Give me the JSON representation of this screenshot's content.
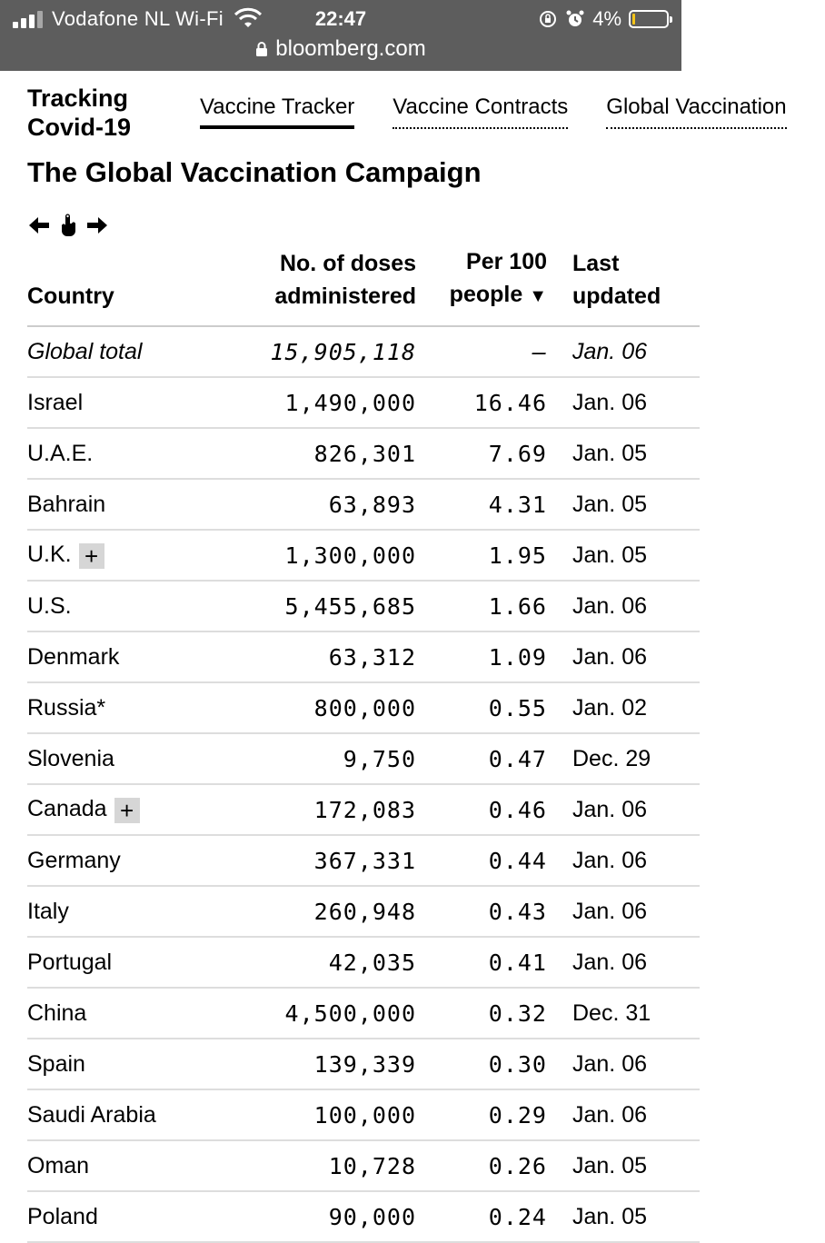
{
  "status_bar": {
    "carrier": "Vodafone NL Wi-Fi",
    "time": "22:47",
    "battery_pct": "4%"
  },
  "url_bar": {
    "domain": "bloomberg.com"
  },
  "header": {
    "brand_line1": "Tracking",
    "brand_line2": "Covid-19",
    "tabs": [
      {
        "label": "Vaccine Tracker"
      },
      {
        "label": "Vaccine Contracts"
      },
      {
        "label": "Global Vaccination"
      }
    ]
  },
  "page_title": "The Global Vaccination Campaign",
  "table": {
    "headers": {
      "country": "Country",
      "doses_line1": "No. of doses",
      "doses_line2": "administered",
      "per_line1": "Per 100",
      "per_line2": "people",
      "sort_indicator": "▼",
      "last_line1": "Last",
      "last_line2": "updated"
    },
    "rows": [
      {
        "country": "Global total",
        "doses": "15,905,118",
        "per100": "–",
        "last": "Jan. 06"
      },
      {
        "country": "Israel",
        "doses": "1,490,000",
        "per100": "16.46",
        "last": "Jan. 06"
      },
      {
        "country": "U.A.E.",
        "doses": "826,301",
        "per100": "7.69",
        "last": "Jan. 05"
      },
      {
        "country": "Bahrain",
        "doses": "63,893",
        "per100": "4.31",
        "last": "Jan. 05"
      },
      {
        "country": "U.K.",
        "doses": "1,300,000",
        "per100": "1.95",
        "last": "Jan. 05",
        "expand": "+"
      },
      {
        "country": "U.S.",
        "doses": "5,455,685",
        "per100": "1.66",
        "last": "Jan. 06"
      },
      {
        "country": "Denmark",
        "doses": "63,312",
        "per100": "1.09",
        "last": "Jan. 06"
      },
      {
        "country": "Russia*",
        "doses": "800,000",
        "per100": "0.55",
        "last": "Jan. 02"
      },
      {
        "country": "Slovenia",
        "doses": "9,750",
        "per100": "0.47",
        "last": "Dec. 29"
      },
      {
        "country": "Canada",
        "doses": "172,083",
        "per100": "0.46",
        "last": "Jan. 06",
        "expand": "+"
      },
      {
        "country": "Germany",
        "doses": "367,331",
        "per100": "0.44",
        "last": "Jan. 06"
      },
      {
        "country": "Italy",
        "doses": "260,948",
        "per100": "0.43",
        "last": "Jan. 06"
      },
      {
        "country": "Portugal",
        "doses": "42,035",
        "per100": "0.41",
        "last": "Jan. 06"
      },
      {
        "country": "China",
        "doses": "4,500,000",
        "per100": "0.32",
        "last": "Dec. 31"
      },
      {
        "country": "Spain",
        "doses": "139,339",
        "per100": "0.30",
        "last": "Jan. 06"
      },
      {
        "country": "Saudi Arabia",
        "doses": "100,000",
        "per100": "0.29",
        "last": "Jan. 06"
      },
      {
        "country": "Oman",
        "doses": "10,728",
        "per100": "0.26",
        "last": "Jan. 05"
      },
      {
        "country": "Poland",
        "doses": "90,000",
        "per100": "0.24",
        "last": "Jan. 05"
      }
    ]
  }
}
